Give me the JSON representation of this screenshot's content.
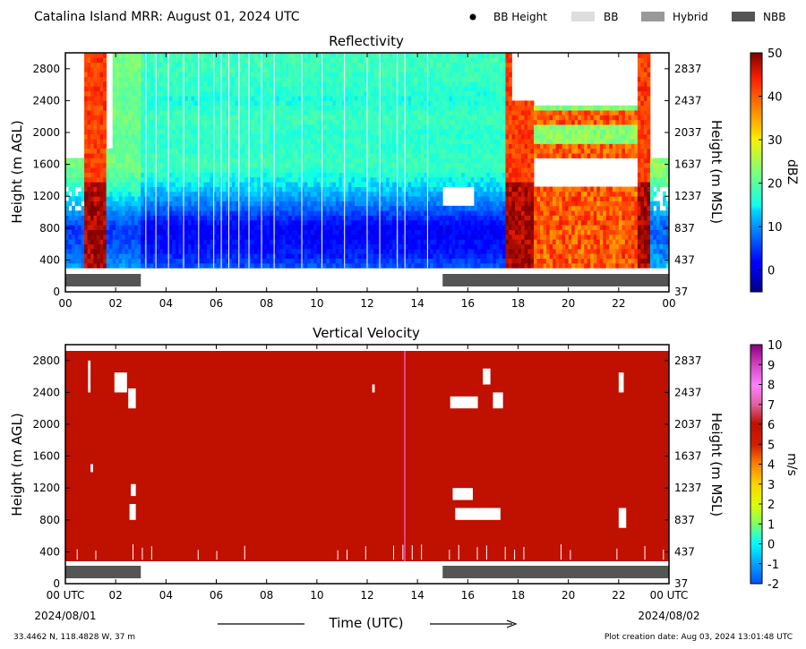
{
  "header": {
    "title": "Catalina Island MRR:  August 01, 2024 UTC",
    "legend": [
      {
        "label": "BB Height",
        "kind": "dot",
        "color": "#000000"
      },
      {
        "label": "BB",
        "kind": "box",
        "color": "#dddddd"
      },
      {
        "label": "Hybrid",
        "kind": "box",
        "color": "#999999"
      },
      {
        "label": "NBB",
        "kind": "box",
        "color": "#555555"
      }
    ]
  },
  "footer": {
    "location": "33.4462 N, 118.4828 W, 37 m",
    "creation": "Plot creation date: Aug 03, 2024 13:01:48 UTC"
  },
  "colors": {
    "vv_red": "#c01000",
    "nbb_gray": "#555555"
  },
  "chart_data": [
    {
      "type": "heatmap",
      "title": "Reflectivity",
      "ylabel": "Height (m AGL)",
      "ylabel_right": "Height (m MSL)",
      "x_ticks": [
        "00",
        "02",
        "04",
        "06",
        "08",
        "10",
        "12",
        "14",
        "16",
        "18",
        "20",
        "22",
        "00"
      ],
      "y_ticks": [
        "0",
        "400",
        "800",
        "1200",
        "1600",
        "2000",
        "2400",
        "2800"
      ],
      "y_ticks_right": [
        "37",
        "437",
        "837",
        "1237",
        "1637",
        "2037",
        "2437",
        "2837"
      ],
      "xlim": [
        0,
        24
      ],
      "ylim": [
        0,
        3000
      ],
      "colorbar": {
        "label": "dBZ",
        "min": -5,
        "max": 50,
        "ticks": [
          "0",
          "10",
          "20",
          "30",
          "40",
          "50"
        ],
        "colormap": "jet"
      },
      "bright_band_type_bars": [
        {
          "start": 0,
          "end": 3,
          "type": "NBB"
        },
        {
          "start": 15,
          "end": 24,
          "type": "NBB"
        }
      ],
      "height_profile_dbz": {
        "300": 7,
        "500": 3,
        "800": 1,
        "1000": 6,
        "1200": 11,
        "1400": 15,
        "1600": 18,
        "1800": 17,
        "2000": 17,
        "2200": 18,
        "2400": 16,
        "2600": 17,
        "2800": 18,
        "3000": 18
      }
    },
    {
      "type": "heatmap",
      "title": "Vertical Velocity",
      "ylabel": "Height (m AGL)",
      "ylabel_right": "Height (m MSL)",
      "x_ticks": [
        "00 UTC",
        "02",
        "04",
        "06",
        "08",
        "10",
        "12",
        "14",
        "16",
        "18",
        "20",
        "22",
        "00 UTC"
      ],
      "x_dates": [
        "2024/08/01",
        "2024/08/02"
      ],
      "xlabel": "Time (UTC)",
      "y_ticks": [
        "0",
        "400",
        "800",
        "1200",
        "1600",
        "2000",
        "2400",
        "2800"
      ],
      "y_ticks_right": [
        "37",
        "437",
        "837",
        "1237",
        "1637",
        "2037",
        "2437",
        "2837"
      ],
      "xlim": [
        0,
        24
      ],
      "ylim": [
        0,
        3000
      ],
      "colorbar": {
        "label": "m/s",
        "min": -2,
        "max": 10,
        "ticks": [
          "-2",
          "-1",
          "0",
          "1",
          "2",
          "3",
          "4",
          "5",
          "6",
          "7",
          "8",
          "9",
          "10"
        ],
        "colormap": "jet-magenta"
      },
      "dominant_value_ms": 6,
      "bright_band_type_bars": [
        {
          "start": 0,
          "end": 3,
          "type": "NBB"
        },
        {
          "start": 15,
          "end": 24,
          "type": "NBB"
        }
      ]
    }
  ]
}
